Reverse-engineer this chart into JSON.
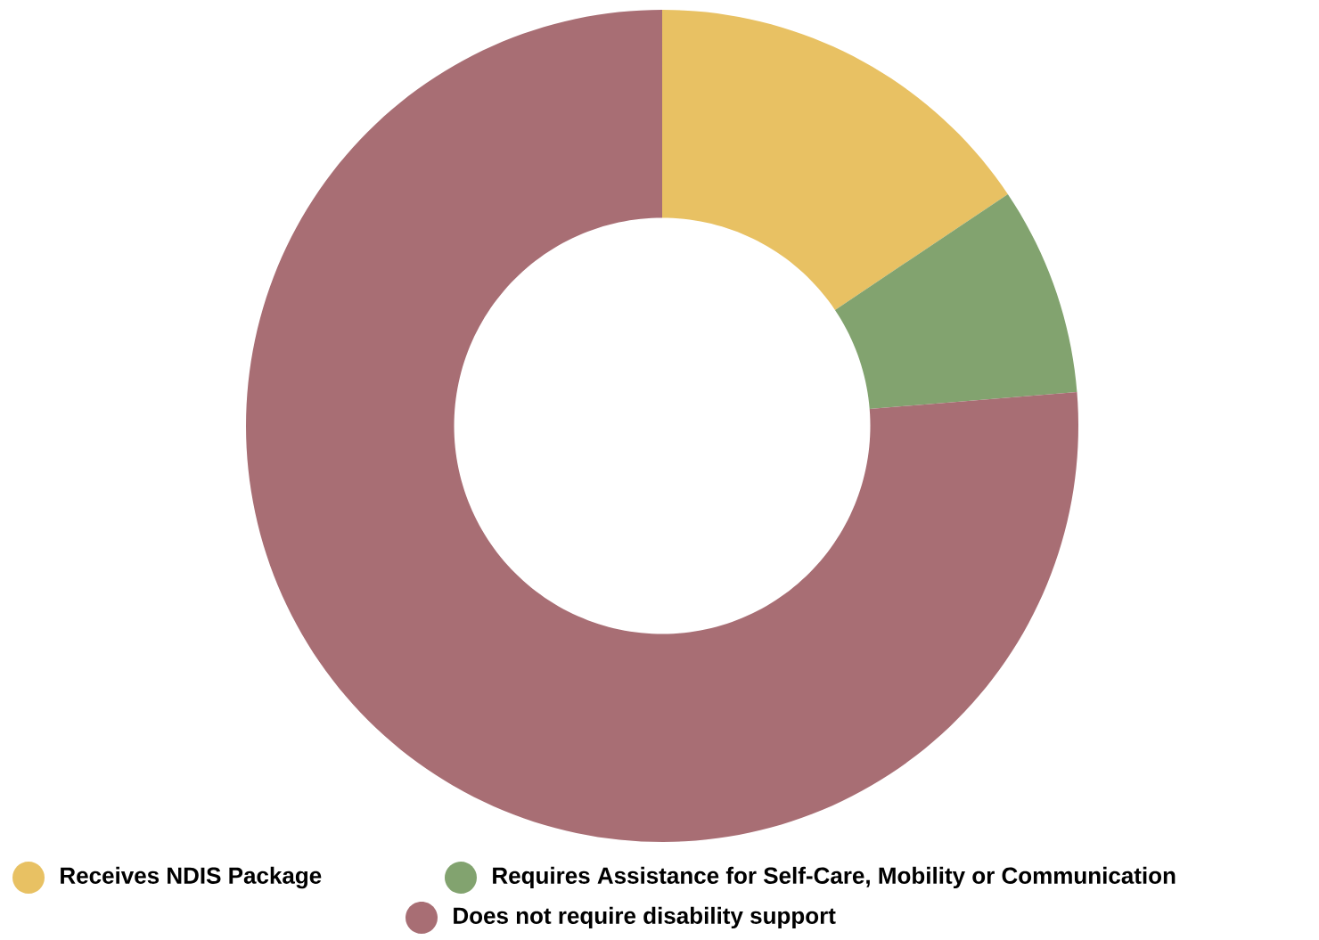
{
  "chart_data": {
    "type": "donut",
    "categories": [
      "Receives NDIS Package",
      "Requires Assistance for Self-Care, Mobility or Communication",
      "Does not require disability support"
    ],
    "values": [
      15.6,
      8.1,
      76.3
    ],
    "colors": [
      "#e8c163",
      "#82a36f",
      "#a86e74"
    ],
    "legend": "bottom"
  }
}
